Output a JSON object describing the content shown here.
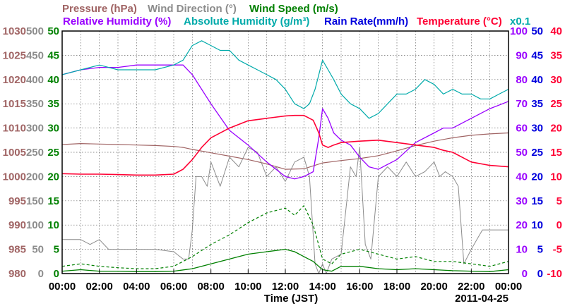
{
  "chart_data": {
    "type": "line",
    "date_label": "2011-04-25",
    "xlabel": "Time (JST)",
    "x_ticks": [
      "00:00",
      "02:00",
      "04:00",
      "06:00",
      "08:00",
      "10:00",
      "12:00",
      "14:00",
      "16:00",
      "18:00",
      "20:00",
      "22:00",
      "00:00"
    ],
    "x_range_hours": [
      0,
      24
    ],
    "grid": true,
    "axes": {
      "pressure": {
        "label": "Pressure (hPa)",
        "color": "#a06464",
        "ylim": [
          980,
          1030
        ],
        "ticks": [
          "980",
          "985",
          "990",
          "995",
          "1000",
          "1005",
          "1010",
          "1015",
          "1020",
          "1025",
          "1030"
        ]
      },
      "wind_direction": {
        "label": "Wind Direction (°)",
        "color": "#8c8c8c",
        "ylim": [
          0,
          500
        ],
        "ticks": [
          "0",
          "50",
          "100",
          "150",
          "200",
          "250",
          "300",
          "350",
          "400",
          "450",
          "500"
        ]
      },
      "wind_speed": {
        "label": "Wind Speed (m/s)",
        "color": "#008000",
        "ylim": [
          0,
          50
        ],
        "ticks": [
          "0",
          "5",
          "10",
          "15",
          "20",
          "25",
          "30",
          "35",
          "40",
          "45",
          "50"
        ]
      },
      "relative_humidity": {
        "label": "Relative Humidity (%)",
        "color": "#9900ff",
        "ylim": [
          0,
          100
        ],
        "ticks": [
          "0",
          "10",
          "20",
          "30",
          "40",
          "50",
          "60",
          "70",
          "80",
          "90",
          "100"
        ]
      },
      "absolute_humidity": {
        "label": "Absolute Humidity (g/m³)",
        "color": "#00aaaa",
        "scale_note": "x0.1",
        "ylim": [
          0,
          50
        ]
      },
      "rain_rate": {
        "label": "Rain Rate(mm/h)",
        "color": "#0000dd",
        "ylim": [
          0,
          50
        ],
        "ticks": [
          "0",
          "5",
          "10",
          "15",
          "20",
          "25",
          "30",
          "35",
          "40",
          "45",
          "50"
        ]
      },
      "temperature": {
        "label": "Temperature (°C)",
        "color": "#ff0033",
        "ylim": [
          -10,
          40
        ],
        "ticks": [
          "-10",
          "-5",
          "0",
          "5",
          "10",
          "15",
          "20",
          "25",
          "30",
          "35",
          "40"
        ]
      }
    },
    "series": [
      {
        "name": "Pressure (hPa)",
        "axis": "pressure",
        "x": [
          0,
          1,
          2,
          3,
          4,
          5,
          6,
          6.5,
          7,
          8,
          9,
          10,
          11,
          12,
          13,
          14,
          15,
          16,
          17,
          18,
          19,
          20,
          21,
          22,
          23,
          24
        ],
        "y": [
          1006.6,
          1006.8,
          1006.7,
          1006.6,
          1006.5,
          1006.4,
          1006.2,
          1006.0,
          1005.6,
          1004.9,
          1004.2,
          1003.5,
          1002.6,
          1001.5,
          1001.6,
          1002.8,
          1003.3,
          1003.7,
          1004.3,
          1005.3,
          1006.4,
          1007.3,
          1008.0,
          1008.5,
          1008.8,
          1009.0
        ]
      },
      {
        "name": "Wind Direction (°)",
        "axis": "wind_direction",
        "x": [
          0,
          0.5,
          1,
          1.5,
          2,
          2.5,
          3,
          4,
          5,
          6,
          6.5,
          6.8,
          7,
          7.2,
          7.5,
          7.8,
          8,
          8.5,
          9,
          9.5,
          10,
          10.5,
          11,
          11.5,
          12,
          12.5,
          13,
          13.3,
          13.6,
          13.8,
          14,
          14.2,
          14.5,
          15,
          15.5,
          15.8,
          16,
          16.3,
          16.6,
          17,
          17.5,
          18,
          18.5,
          19,
          19.5,
          20,
          20.3,
          20.6,
          21,
          21.3,
          21.6,
          22,
          22.3,
          22.6,
          23,
          23.5,
          24
        ],
        "y": [
          70,
          70,
          70,
          60,
          70,
          50,
          50,
          50,
          50,
          45,
          30,
          30,
          90,
          200,
          200,
          180,
          230,
          180,
          240,
          220,
          260,
          250,
          200,
          220,
          190,
          230,
          240,
          200,
          20,
          0,
          20,
          0,
          30,
          40,
          220,
          200,
          260,
          60,
          30,
          200,
          220,
          200,
          230,
          200,
          210,
          230,
          200,
          210,
          200,
          180,
          20,
          50,
          70,
          90,
          90,
          90,
          90
        ]
      },
      {
        "name": "Wind Speed (m/s)",
        "axis": "wind_speed",
        "x": [
          0,
          1,
          2,
          3,
          4,
          5,
          6,
          7,
          8,
          9,
          10,
          11,
          12,
          12.5,
          13,
          13.5,
          14,
          14.5,
          15,
          16,
          17,
          18,
          19,
          20,
          21,
          22,
          23,
          24
        ],
        "y": [
          0.5,
          0.8,
          0.5,
          0.5,
          0.4,
          0.4,
          0.5,
          1.0,
          2.0,
          3.0,
          4.0,
          4.5,
          5.0,
          4.5,
          3.5,
          2.5,
          0.8,
          0.5,
          1.5,
          1.5,
          1.0,
          0.8,
          1.0,
          0.8,
          0.6,
          0.5,
          0.4,
          0.8
        ]
      },
      {
        "name": "Wind Speed gust (m/s)",
        "axis": "wind_speed",
        "x": [
          0,
          1,
          2,
          3,
          4,
          5,
          6,
          7,
          8,
          9,
          10,
          11,
          12,
          12.5,
          13,
          13.5,
          14,
          14.5,
          15,
          16,
          17,
          18,
          19,
          20,
          21,
          22,
          23,
          24
        ],
        "y": [
          1.5,
          2.0,
          1.5,
          1.2,
          1.0,
          1.0,
          1.5,
          3.5,
          6.0,
          8.0,
          10.5,
          12.5,
          13.5,
          12.0,
          14.0,
          10.0,
          3.0,
          2.0,
          4.0,
          5.0,
          4.0,
          3.0,
          3.5,
          2.5,
          2.5,
          2.0,
          1.5,
          2.5
        ]
      },
      {
        "name": "Relative Humidity (%)",
        "axis": "relative_humidity",
        "x": [
          0,
          1,
          2,
          3,
          4,
          5,
          6,
          6.5,
          7,
          7.5,
          8,
          9,
          10,
          11,
          12,
          12.5,
          13,
          13.5,
          13.8,
          14,
          14.3,
          14.6,
          15,
          15.5,
          16,
          16.5,
          17,
          17.5,
          18,
          19,
          20,
          20.5,
          21,
          22,
          23,
          24
        ],
        "y": [
          82,
          84,
          85,
          85,
          86,
          86,
          86,
          86,
          82,
          76,
          70,
          59,
          53,
          46,
          40,
          39,
          40,
          42,
          56,
          68,
          64,
          58,
          55,
          53,
          48,
          44,
          43,
          45,
          47,
          54,
          58,
          60,
          60,
          64,
          68,
          71
        ]
      },
      {
        "name": "Absolute Humidity (g/m³)",
        "axis": "absolute_humidity",
        "x": [
          0,
          1,
          2,
          3,
          4,
          5,
          6,
          6.5,
          7,
          7.5,
          8,
          8.5,
          9,
          9.5,
          10,
          10.5,
          11,
          11.5,
          12,
          12.5,
          13,
          13.3,
          13.6,
          14,
          14.3,
          14.6,
          15,
          15.5,
          16,
          16.5,
          17,
          17.5,
          18,
          18.5,
          19,
          19.5,
          20,
          20.5,
          21,
          21.5,
          22,
          22.5,
          23,
          23.5,
          24
        ],
        "y": [
          41,
          42,
          43,
          42,
          42,
          42,
          43,
          44,
          47,
          48,
          47,
          46,
          46,
          44,
          43,
          42,
          41,
          40,
          38,
          35,
          34,
          35,
          38,
          44,
          42,
          40,
          37,
          35,
          34,
          32,
          33,
          35,
          37,
          37,
          38,
          40,
          39,
          37,
          38,
          37,
          37,
          36,
          36,
          37,
          38
        ]
      },
      {
        "name": "Temperature (°C)",
        "axis": "temperature",
        "x": [
          0,
          1,
          2,
          3,
          4,
          5,
          6,
          6.5,
          7,
          7.5,
          8,
          9,
          10,
          11,
          12,
          12.5,
          13,
          13.5,
          13.8,
          14,
          14.3,
          14.6,
          15,
          16,
          17,
          18,
          19,
          20,
          20.5,
          21,
          21.5,
          22,
          23,
          24
        ],
        "y": [
          10.6,
          10.5,
          10.5,
          10.4,
          10.3,
          10.3,
          10.5,
          11.5,
          13.5,
          16,
          18,
          20,
          21.5,
          22,
          22.5,
          22.6,
          22.6,
          21.6,
          19,
          16.5,
          16,
          16.5,
          17,
          17.3,
          17.5,
          17,
          16.5,
          16,
          15.4,
          15,
          14,
          13,
          12.3,
          12
        ]
      }
    ]
  }
}
